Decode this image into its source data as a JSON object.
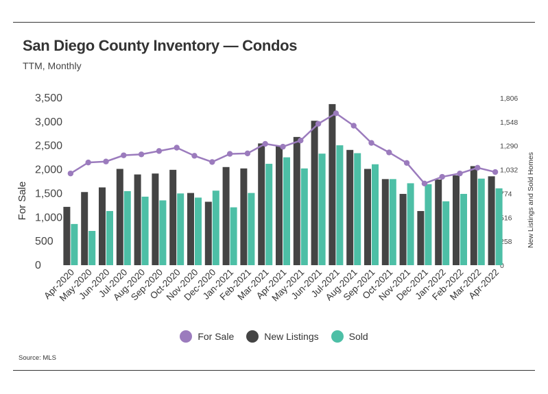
{
  "title": "San Diego County Inventory — Condos",
  "subtitle": "TTM, Monthly",
  "source": "Source:  MLS",
  "colors": {
    "for_sale": "#9b7bbd",
    "new_listings": "#444444",
    "sold": "#4dbfa6"
  },
  "chart_data": {
    "type": "bar",
    "categories": [
      "Apr-2020",
      "May-2020",
      "Jun-2020",
      "Jul-2020",
      "Aug-2020",
      "Sep-2020",
      "Oct-2020",
      "Nov-2020",
      "Dec-2020",
      "Jan-2021",
      "Feb-2021",
      "Mar-2021",
      "Apr-2021",
      "May-2021",
      "Jun-2021",
      "Jul-2021",
      "Aug-2021",
      "Sep-2021",
      "Oct-2021",
      "Nov-2021",
      "Dec-2021",
      "Jan-2022",
      "Feb-2022",
      "Mar-2022",
      "Apr-2022"
    ],
    "ylabel_left": "For Sale",
    "ylabel_right": "New Listings and Sold Homes",
    "yticks_left": [
      "0",
      "500",
      "1,000",
      "1,500",
      "2,000",
      "2,500",
      "3,000",
      "3,500"
    ],
    "yticks_right": [
      "0",
      "258",
      "516",
      "774",
      "1,032",
      "1,290",
      "1,548",
      "1,806"
    ],
    "ylim_left": [
      0,
      3500
    ],
    "ylim_right": [
      0,
      1806
    ],
    "series": [
      {
        "name": "For Sale",
        "type": "line",
        "axis": "left",
        "values": [
          1920,
          2150,
          2170,
          2300,
          2320,
          2390,
          2460,
          2290,
          2160,
          2330,
          2340,
          2540,
          2480,
          2610,
          2960,
          3180,
          2920,
          2560,
          2360,
          2140,
          1710,
          1850,
          1920,
          2040,
          1950
        ]
      },
      {
        "name": "New Listings",
        "type": "bar",
        "axis": "right",
        "values": [
          630,
          790,
          840,
          1040,
          980,
          990,
          1030,
          780,
          685,
          1060,
          1045,
          1315,
          1285,
          1385,
          1560,
          1740,
          1245,
          1040,
          930,
          770,
          585,
          925,
          970,
          1070,
          960
        ]
      },
      {
        "name": "Sold",
        "type": "bar",
        "axis": "right",
        "values": [
          445,
          370,
          585,
          800,
          740,
          700,
          775,
          730,
          805,
          625,
          780,
          1095,
          1165,
          1045,
          1205,
          1295,
          1210,
          1090,
          930,
          885,
          875,
          690,
          770,
          935,
          830
        ]
      }
    ],
    "legend_position": "bottom",
    "grid": false
  }
}
